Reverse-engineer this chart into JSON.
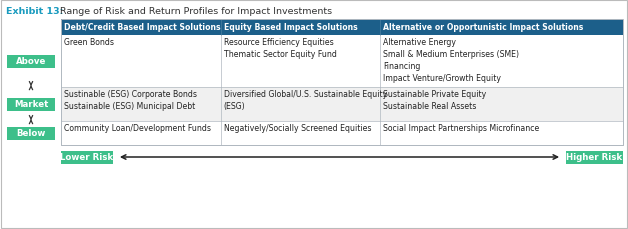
{
  "title_bold": "Exhibit 13:",
  "title_rest": " Range of Risk and Return Profiles for Impact Investments",
  "title_color_bold": "#1a9bbf",
  "title_color_rest": "#333333",
  "header_bg": "#1c5f8a",
  "header_text_color": "#ffffff",
  "header_cols": [
    "Debt/Credit Based Impact Solutions",
    "Equity Based Impact Solutions",
    "Alternative or Opportunistic Impact Solutions"
  ],
  "row_labels": [
    "Above",
    "Market",
    "Below"
  ],
  "row_label_bg": "#3dbf8a",
  "row_label_text": "#ffffff",
  "cell_bg_even": "#ffffff",
  "cell_bg_odd": "#f0f0f0",
  "border_color": "#b0b8c0",
  "cells": [
    [
      "Green Bonds",
      "Resource Efficiency Equities\nThematic Sector Equity Fund",
      "Alternative Energy\nSmall & Medium Enterprises (SME)\nFinancing\nImpact Venture/Growth Equity"
    ],
    [
      "Sustinable (ESG) Corporate Bonds\nSustainable (ESG) Municipal Debt",
      "Diversified Global/U.S. Sustainable Equity\n(ESG)",
      "Sustainable Private Equity\nSustainable Real Assets"
    ],
    [
      "Community Loan/Development Funds",
      "Negatively/Socially Screened Equities",
      "Social Impact Partnerships Microfinance"
    ]
  ],
  "lower_risk_label": "Lower Risk",
  "higher_risk_label": "Higher Risk",
  "btn_bg": "#3dbf8a",
  "btn_text": "#ffffff",
  "arrow_color": "#222222",
  "fig_bg": "#ffffff",
  "outer_border": "#bbbbbb",
  "fig_w": 6.28,
  "fig_h": 2.3,
  "dpi": 100
}
